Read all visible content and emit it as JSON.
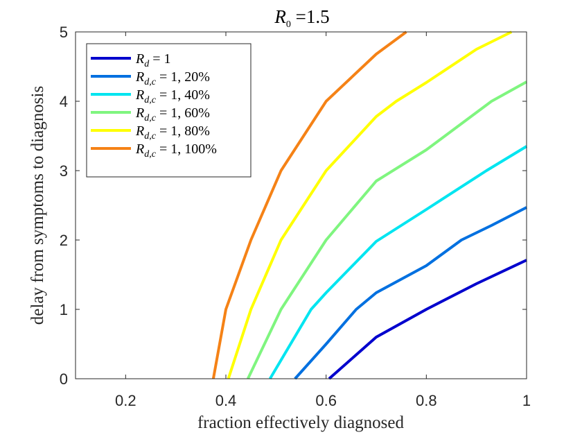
{
  "chart_data": {
    "type": "line",
    "title": {
      "base": "R",
      "sub": "0",
      "rest": " =1.5"
    },
    "xlabel": "fraction effectively diagnosed",
    "ylabel": "delay from symptoms to diagnosis",
    "xlim": [
      0.1,
      1.0
    ],
    "ylim": [
      0,
      5
    ],
    "xticks": [
      0.2,
      0.4,
      0.6,
      0.8,
      1.0
    ],
    "xtick_labels": [
      "0.2",
      "0.4",
      "0.6",
      "0.8",
      "1"
    ],
    "yticks": [
      0,
      1,
      2,
      3,
      4,
      5
    ],
    "ytick_labels": [
      "0",
      "1",
      "2",
      "3",
      "4",
      "5"
    ],
    "grid": false,
    "legend_position": "top-left",
    "series": [
      {
        "label_base": "R",
        "label_sub": "d",
        "label_rest": " = 1",
        "color": "#0000CD",
        "x": [
          0.606,
          0.7,
          0.8,
          0.9,
          1.0
        ],
        "y": [
          0.0,
          0.6,
          1.0,
          1.37,
          1.71
        ]
      },
      {
        "label_base": "R",
        "label_sub": "d,c",
        "label_rest": " = 1, 20%",
        "color": "#0070E0",
        "x": [
          0.538,
          0.6,
          0.66,
          0.7,
          0.8,
          0.87,
          0.93,
          1.0
        ],
        "y": [
          0.0,
          0.5,
          1.0,
          1.24,
          1.63,
          2.0,
          2.21,
          2.47
        ]
      },
      {
        "label_base": "R",
        "label_sub": "d,c",
        "label_rest": " = 1, 40%",
        "color": "#00E5F0",
        "x": [
          0.488,
          0.57,
          0.6,
          0.7,
          0.8,
          0.92,
          1.0
        ],
        "y": [
          0.0,
          1.0,
          1.24,
          1.98,
          2.44,
          3.0,
          3.35
        ]
      },
      {
        "label_base": "R",
        "label_sub": "d,c",
        "label_rest": " = 1, 60%",
        "color": "#7FF57F",
        "x": [
          0.444,
          0.51,
          0.6,
          0.7,
          0.8,
          0.93,
          1.0
        ],
        "y": [
          0.0,
          1.0,
          2.0,
          2.85,
          3.3,
          4.0,
          4.28
        ]
      },
      {
        "label_base": "R",
        "label_sub": "d,c",
        "label_rest": " = 1, 80%",
        "color": "#FFFF00",
        "x": [
          0.405,
          0.45,
          0.51,
          0.6,
          0.7,
          0.74,
          0.8,
          0.9,
          0.97
        ],
        "y": [
          0.0,
          1.0,
          2.0,
          3.0,
          3.78,
          4.0,
          4.27,
          4.75,
          5.0
        ]
      },
      {
        "label_base": "R",
        "label_sub": "d,c",
        "label_rest": " = 1, 100%",
        "color": "#F58216",
        "x": [
          0.375,
          0.4,
          0.45,
          0.51,
          0.6,
          0.7,
          0.76
        ],
        "y": [
          0.0,
          1.0,
          2.0,
          3.0,
          4.0,
          4.68,
          5.0
        ]
      }
    ]
  }
}
